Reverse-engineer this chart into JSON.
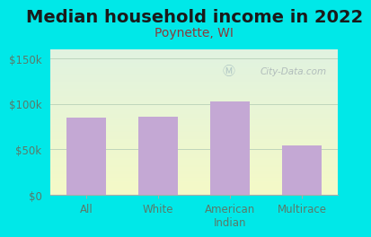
{
  "title": "Median household income in 2022",
  "subtitle": "Poynette, WI",
  "categories": [
    "All",
    "White",
    "American\nIndian",
    "Multirace"
  ],
  "values": [
    85000,
    86000,
    103000,
    54000
  ],
  "bar_color": "#c4a8d4",
  "background_color": "#00e8e8",
  "title_color": "#1a1a1a",
  "subtitle_color": "#8b3a3a",
  "axis_label_color": "#5a7a6a",
  "ytick_labels": [
    "$0",
    "$50k",
    "$100k",
    "$150k"
  ],
  "ytick_values": [
    0,
    50000,
    100000,
    150000
  ],
  "ylim": [
    0,
    160000
  ],
  "watermark": "City-Data.com",
  "title_fontsize": 14,
  "subtitle_fontsize": 10,
  "tick_fontsize": 8.5
}
